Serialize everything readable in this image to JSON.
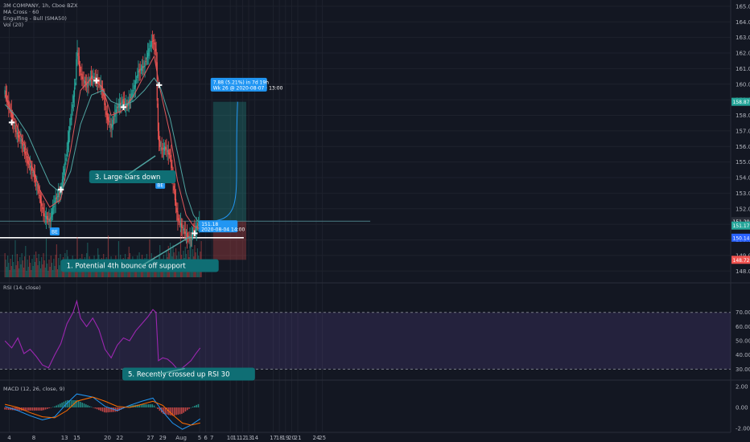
{
  "chart_data": [
    {
      "type": "candlestick",
      "legend": [
        "3M COMPANY, 1h, Cboe BZX",
        "MA Cross · 60",
        "Engulfing - Bull (SMA50)",
        "Vol (20)"
      ],
      "x_ticks": [
        {
          "label": "4",
          "day": 4
        },
        {
          "label": "8",
          "day": 8
        },
        {
          "label": "13",
          "day": 13
        },
        {
          "label": "15",
          "day": 15
        },
        {
          "label": "20",
          "day": 20
        },
        {
          "label": "22",
          "day": 22
        },
        {
          "label": "27",
          "day": 27
        },
        {
          "label": "29",
          "day": 29
        },
        {
          "label": "Aug",
          "day": 32
        },
        {
          "label": "5",
          "day": 35
        },
        {
          "label": "6",
          "day": 36
        },
        {
          "label": "7",
          "day": 37
        },
        {
          "label": "10",
          "day": 40
        },
        {
          "label": "11",
          "day": 41
        },
        {
          "label": "12",
          "day": 42
        },
        {
          "label": "13",
          "day": 43
        },
        {
          "label": "14",
          "day": 44
        },
        {
          "label": "17",
          "day": 47
        },
        {
          "label": "18",
          "day": 48
        },
        {
          "label": "19",
          "day": 49
        },
        {
          "label": "20",
          "day": 50
        },
        {
          "label": "21",
          "day": 51
        },
        {
          "label": "24",
          "day": 54
        },
        {
          "label": "25",
          "day": 55
        }
      ],
      "price_axis": {
        "min": 147.6,
        "max": 165.2,
        "ticks": [
          "165.00",
          "164.00",
          "163.00",
          "162.00",
          "161.00",
          "160.00",
          "159.00",
          "158.00",
          "157.00",
          "156.00",
          "155.00",
          "154.00",
          "153.00",
          "152.00",
          "151.00",
          "150.00",
          "149.00",
          "148.00"
        ]
      },
      "price_path": [
        {
          "day": 3.3,
          "price": 159.5
        },
        {
          "day": 4.2,
          "price": 158.2
        },
        {
          "day": 5.0,
          "price": 157.0
        },
        {
          "day": 6.0,
          "price": 156.3
        },
        {
          "day": 7.0,
          "price": 155.0
        },
        {
          "day": 8.0,
          "price": 154.2
        },
        {
          "day": 8.8,
          "price": 153.0
        },
        {
          "day": 9.6,
          "price": 151.6
        },
        {
          "day": 10.6,
          "price": 151.2
        },
        {
          "day": 11.4,
          "price": 152.5
        },
        {
          "day": 12.4,
          "price": 153.2
        },
        {
          "day": 13.2,
          "price": 155.2
        },
        {
          "day": 14.0,
          "price": 157.8
        },
        {
          "day": 14.8,
          "price": 160.3
        },
        {
          "day": 15.0,
          "price": 162.4
        },
        {
          "day": 15.6,
          "price": 160.6
        },
        {
          "day": 16.6,
          "price": 159.9
        },
        {
          "day": 17.4,
          "price": 160.5
        },
        {
          "day": 18.4,
          "price": 160.2
        },
        {
          "day": 19.2,
          "price": 159.6
        },
        {
          "day": 19.8,
          "price": 158.0
        },
        {
          "day": 20.6,
          "price": 157.2
        },
        {
          "day": 21.4,
          "price": 158.4
        },
        {
          "day": 22.4,
          "price": 158.9
        },
        {
          "day": 23.2,
          "price": 158.6
        },
        {
          "day": 24.2,
          "price": 159.6
        },
        {
          "day": 25.0,
          "price": 160.8
        },
        {
          "day": 26.0,
          "price": 161.2
        },
        {
          "day": 26.8,
          "price": 162.3
        },
        {
          "day": 27.4,
          "price": 162.9
        },
        {
          "day": 27.9,
          "price": 162.0
        },
        {
          "day": 28.2,
          "price": 157.0
        },
        {
          "day": 28.6,
          "price": 155.8
        },
        {
          "day": 29.4,
          "price": 155.9
        },
        {
          "day": 30.2,
          "price": 155.4
        },
        {
          "day": 30.8,
          "price": 153.2
        },
        {
          "day": 31.4,
          "price": 151.4
        },
        {
          "day": 32.0,
          "price": 150.9
        },
        {
          "day": 32.8,
          "price": 150.3
        },
        {
          "day": 33.4,
          "price": 150.0
        },
        {
          "day": 34.0,
          "price": 150.6
        },
        {
          "day": 34.5,
          "price": 150.8
        },
        {
          "day": 35.1,
          "price": 151.2
        }
      ],
      "moving_averages": [
        {
          "color": "#e0585b",
          "points": [
            {
              "day": 3.3,
              "price": 159.3
            },
            {
              "day": 5.0,
              "price": 157.6
            },
            {
              "day": 7.0,
              "price": 155.6
            },
            {
              "day": 9.0,
              "price": 153.2
            },
            {
              "day": 10.6,
              "price": 152.1
            },
            {
              "day": 12.4,
              "price": 152.6
            },
            {
              "day": 14.0,
              "price": 155.8
            },
            {
              "day": 15.6,
              "price": 159.6
            },
            {
              "day": 17.4,
              "price": 160.4
            },
            {
              "day": 19.2,
              "price": 159.8
            },
            {
              "day": 20.6,
              "price": 158.0
            },
            {
              "day": 22.4,
              "price": 158.3
            },
            {
              "day": 24.2,
              "price": 159.2
            },
            {
              "day": 26.0,
              "price": 160.6
            },
            {
              "day": 27.6,
              "price": 161.8
            },
            {
              "day": 28.6,
              "price": 159.6
            },
            {
              "day": 30.2,
              "price": 156.8
            },
            {
              "day": 31.4,
              "price": 153.8
            },
            {
              "day": 32.8,
              "price": 151.6
            },
            {
              "day": 34.0,
              "price": 150.9
            },
            {
              "day": 35.1,
              "price": 150.7
            }
          ]
        },
        {
          "color": "#4fa3a0",
          "points": [
            {
              "day": 3.3,
              "price": 158.7
            },
            {
              "day": 5.0,
              "price": 158.0
            },
            {
              "day": 7.0,
              "price": 156.8
            },
            {
              "day": 9.0,
              "price": 155.0
            },
            {
              "day": 10.6,
              "price": 153.6
            },
            {
              "day": 12.4,
              "price": 153.0
            },
            {
              "day": 14.0,
              "price": 154.4
            },
            {
              "day": 15.6,
              "price": 157.4
            },
            {
              "day": 17.4,
              "price": 159.3
            },
            {
              "day": 19.2,
              "price": 159.6
            },
            {
              "day": 20.6,
              "price": 158.9
            },
            {
              "day": 22.4,
              "price": 158.6
            },
            {
              "day": 24.2,
              "price": 158.9
            },
            {
              "day": 26.0,
              "price": 159.6
            },
            {
              "day": 27.6,
              "price": 160.4
            },
            {
              "day": 28.6,
              "price": 159.8
            },
            {
              "day": 30.2,
              "price": 157.8
            },
            {
              "day": 31.4,
              "price": 155.6
            },
            {
              "day": 32.8,
              "price": 153.0
            },
            {
              "day": 34.0,
              "price": 151.6
            },
            {
              "day": 35.1,
              "price": 151.0
            }
          ]
        }
      ],
      "cross_markers": [
        {
          "day": 4.4,
          "price": 157.5
        },
        {
          "day": 12.4,
          "price": 153.2
        },
        {
          "day": 18.2,
          "price": 160.2
        },
        {
          "day": 22.6,
          "price": 158.5
        },
        {
          "day": 28.4,
          "price": 159.9
        },
        {
          "day": 34.2,
          "price": 150.4
        }
      ],
      "engulfing_labels": [
        {
          "label": "BE",
          "day": 11.4,
          "price": 150.8
        },
        {
          "label": "BE",
          "day": 28.6,
          "price": 153.8
        }
      ],
      "levels": [
        {
          "name": "support",
          "price": 150.14,
          "color": "#ffffff",
          "from_day": 0,
          "to_day": 42.2
        },
        {
          "name": "entry",
          "price": 151.2,
          "color": "#4a7b83",
          "from_day": 0,
          "to_day": 62.8
        }
      ],
      "trade": {
        "entry": 151.2,
        "target": 158.87,
        "stop": 148.72,
        "from_day": 37.2,
        "to_day": 42.6,
        "projection_label": "7.88 (5.21%) in 7d 19h",
        "projection_sub": "Wk 26 @ 2020-08-07 · 13:00",
        "price_label": "151.18",
        "price_sub": "2020-08-04 14:00"
      },
      "price_tags": [
        {
          "label": "158.87",
          "price": 158.87,
          "color": "#26a69a"
        },
        {
          "label": "151.20",
          "price": 151.2,
          "color": "#2a2e39"
        },
        {
          "label": "151.17",
          "price": 150.92,
          "color": "#26a69a"
        },
        {
          "label": "150.14",
          "price": 150.14,
          "color": "#2962ff"
        },
        {
          "label": "148.72",
          "price": 148.72,
          "color": "#ef5350"
        }
      ],
      "annotations": [
        {
          "label": "3. Large bars down",
          "day": 18.2,
          "price": 154.0
        },
        {
          "label": "1. Potential 4th bounce off support",
          "day": 13.6,
          "price": 148.3
        }
      ]
    },
    {
      "type": "line",
      "legend": "RSI (14, close)",
      "y_ticks": [
        "70.00",
        "60.00",
        "50.00",
        "40.00",
        "30.00"
      ],
      "ylim": [
        24,
        84
      ],
      "band": [
        30,
        70
      ],
      "series": [
        {
          "values": [
            {
              "day": 3.3,
              "value": 50
            },
            {
              "day": 4.4,
              "value": 45
            },
            {
              "day": 5.4,
              "value": 52
            },
            {
              "day": 6.4,
              "value": 41
            },
            {
              "day": 7.4,
              "value": 44
            },
            {
              "day": 8.4,
              "value": 39
            },
            {
              "day": 9.4,
              "value": 33
            },
            {
              "day": 10.4,
              "value": 31
            },
            {
              "day": 11.4,
              "value": 40
            },
            {
              "day": 12.4,
              "value": 48
            },
            {
              "day": 13.4,
              "value": 62
            },
            {
              "day": 14.4,
              "value": 70
            },
            {
              "day": 15.0,
              "value": 78
            },
            {
              "day": 15.6,
              "value": 66
            },
            {
              "day": 16.6,
              "value": 60
            },
            {
              "day": 17.6,
              "value": 66
            },
            {
              "day": 18.6,
              "value": 58
            },
            {
              "day": 19.6,
              "value": 44
            },
            {
              "day": 20.6,
              "value": 38
            },
            {
              "day": 21.6,
              "value": 47
            },
            {
              "day": 22.6,
              "value": 52
            },
            {
              "day": 23.6,
              "value": 50
            },
            {
              "day": 24.6,
              "value": 57
            },
            {
              "day": 25.6,
              "value": 62
            },
            {
              "day": 26.6,
              "value": 67
            },
            {
              "day": 27.4,
              "value": 72
            },
            {
              "day": 27.9,
              "value": 70
            },
            {
              "day": 28.3,
              "value": 36
            },
            {
              "day": 29.0,
              "value": 38
            },
            {
              "day": 29.8,
              "value": 37
            },
            {
              "day": 30.6,
              "value": 34
            },
            {
              "day": 31.4,
              "value": 30
            },
            {
              "day": 32.2,
              "value": 31
            },
            {
              "day": 32.8,
              "value": 33
            },
            {
              "day": 33.6,
              "value": 36
            },
            {
              "day": 34.4,
              "value": 41
            },
            {
              "day": 35.1,
              "value": 45
            }
          ]
        }
      ],
      "annotations": [
        {
          "label": "5. Recently crossed up RSI 30",
          "day": 23.6,
          "value": 26
        }
      ]
    },
    {
      "type": "bar",
      "legend": "MACD (12, 26, close, 9)",
      "y_ticks": [
        "2.00",
        "0.00",
        "-2.00"
      ],
      "ylim": [
        -2.4,
        2.4
      ],
      "series": [
        {
          "values": [
            {
              "day": 3.3,
              "value": 0.1
            },
            {
              "day": 5.4,
              "value": -0.3
            },
            {
              "day": 7.4,
              "value": -0.8
            },
            {
              "day": 9.4,
              "value": -1.2
            },
            {
              "day": 11.4,
              "value": -0.9
            },
            {
              "day": 13.4,
              "value": 0.4
            },
            {
              "day": 15.0,
              "value": 1.3
            },
            {
              "day": 17.6,
              "value": 1.0
            },
            {
              "day": 19.6,
              "value": 0.1
            },
            {
              "day": 21.6,
              "value": -0.3
            },
            {
              "day": 23.6,
              "value": 0.2
            },
            {
              "day": 25.6,
              "value": 0.6
            },
            {
              "day": 27.4,
              "value": 0.9
            },
            {
              "day": 29.0,
              "value": -0.4
            },
            {
              "day": 30.6,
              "value": -1.5
            },
            {
              "day": 32.2,
              "value": -2.1
            },
            {
              "day": 33.6,
              "value": -1.7
            },
            {
              "day": 35.1,
              "value": -1.1
            }
          ]
        },
        {
          "values": [
            {
              "day": 3.3,
              "value": 0.3
            },
            {
              "day": 5.4,
              "value": 0.0
            },
            {
              "day": 7.4,
              "value": -0.5
            },
            {
              "day": 9.4,
              "value": -0.9
            },
            {
              "day": 11.4,
              "value": -1.0
            },
            {
              "day": 13.4,
              "value": -0.3
            },
            {
              "day": 15.0,
              "value": 0.6
            },
            {
              "day": 17.6,
              "value": 1.0
            },
            {
              "day": 19.6,
              "value": 0.6
            },
            {
              "day": 21.6,
              "value": 0.1
            },
            {
              "day": 23.6,
              "value": 0.0
            },
            {
              "day": 25.6,
              "value": 0.3
            },
            {
              "day": 27.4,
              "value": 0.6
            },
            {
              "day": 29.0,
              "value": 0.2
            },
            {
              "day": 30.6,
              "value": -0.7
            },
            {
              "day": 32.2,
              "value": -1.5
            },
            {
              "day": 33.6,
              "value": -1.7
            },
            {
              "day": 35.1,
              "value": -1.5
            }
          ]
        }
      ]
    }
  ]
}
